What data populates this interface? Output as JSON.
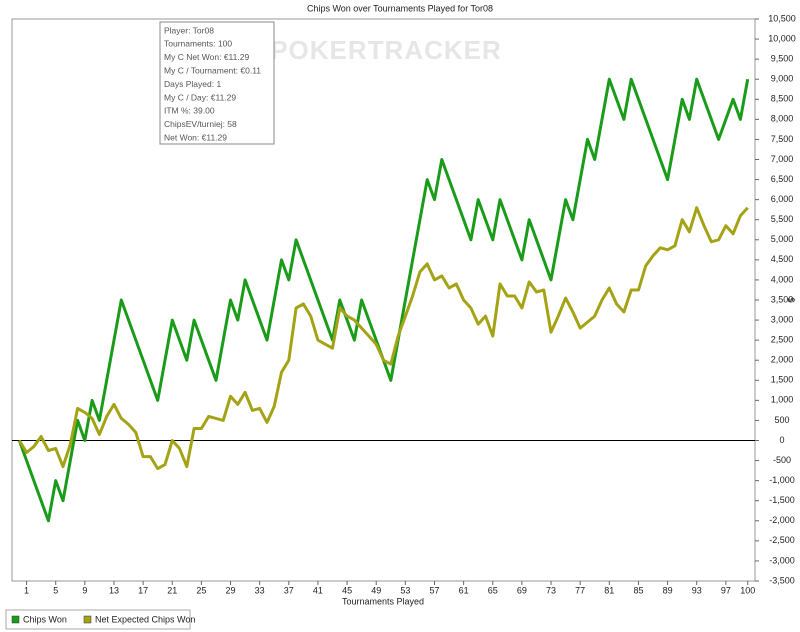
{
  "chart_data": {
    "type": "line",
    "title": "Chips Won over Tournaments Played for Tor08",
    "watermark": "POKERTRACKER",
    "x_label": "Tournaments Played",
    "y_label": "$",
    "xlim": [
      -1,
      101
    ],
    "ylim": [
      -3500,
      10500
    ],
    "xticks": [
      1,
      5,
      9,
      13,
      17,
      21,
      25,
      29,
      33,
      37,
      41,
      45,
      49,
      53,
      57,
      61,
      65,
      69,
      73,
      77,
      81,
      85,
      89,
      93,
      97,
      100
    ],
    "yticks": [
      {
        "value": -3500,
        "label": "-3,500"
      },
      {
        "value": -3000,
        "label": "-3,000"
      },
      {
        "value": -2500,
        "label": "-2,500"
      },
      {
        "value": -2000,
        "label": "-2,000"
      },
      {
        "value": -1500,
        "label": "-1,500"
      },
      {
        "value": -1000,
        "label": "-1,000"
      },
      -500,
      0,
      500,
      {
        "value": 1000,
        "label": "1,000"
      },
      {
        "value": 1500,
        "label": "1,500"
      },
      {
        "value": 2000,
        "label": "2,000"
      },
      {
        "value": 2500,
        "label": "2,500"
      },
      {
        "value": 3000,
        "label": "3,000"
      },
      {
        "value": 3500,
        "label": "3,500"
      },
      {
        "value": 4000,
        "label": "4,000"
      },
      {
        "value": 4500,
        "label": "4,500"
      },
      {
        "value": 5000,
        "label": "5,000"
      },
      {
        "value": 5500,
        "label": "5,500"
      },
      {
        "value": 6000,
        "label": "6,000"
      },
      {
        "value": 6500,
        "label": "6,500"
      },
      {
        "value": 7000,
        "label": "7,000"
      },
      {
        "value": 7500,
        "label": "7,500"
      },
      {
        "value": 8000,
        "label": "8,000"
      },
      {
        "value": 8500,
        "label": "8,500"
      },
      {
        "value": 9000,
        "label": "9,000"
      },
      {
        "value": 9500,
        "label": "9,500"
      },
      {
        "value": 10000,
        "label": "10,000"
      },
      {
        "value": 10500,
        "label": "10,500"
      }
    ],
    "legend": "bottom-left",
    "series": [
      {
        "name": "Chips Won",
        "color": "#1a9c1a",
        "x": [
          0,
          4,
          5,
          6,
          8,
          9,
          10,
          11,
          14,
          19,
          21,
          23,
          24,
          27,
          29,
          30,
          31,
          34,
          36,
          37,
          38,
          43,
          44,
          46,
          47,
          51,
          56,
          57,
          58,
          62,
          63,
          65,
          66,
          69,
          70,
          73,
          75,
          76,
          78,
          79,
          81,
          83,
          84,
          89,
          91,
          92,
          93,
          96,
          98,
          99,
          100
        ],
        "values": [
          0,
          -2000,
          -1000,
          -1500,
          500,
          0,
          1000,
          500,
          3500,
          1000,
          3000,
          2000,
          3000,
          1500,
          3500,
          3000,
          4000,
          2500,
          4500,
          4000,
          5000,
          2500,
          3500,
          2500,
          3500,
          1500,
          6500,
          6000,
          7000,
          5000,
          6000,
          5000,
          6000,
          4500,
          5500,
          4000,
          6000,
          5500,
          7500,
          7000,
          9000,
          8000,
          9000,
          6500,
          8500,
          8000,
          9000,
          7500,
          8500,
          8000,
          9000
        ]
      },
      {
        "name": "Net Expected Chips Won",
        "color": "#a3a315",
        "x": [
          0,
          1,
          2,
          3,
          4,
          5,
          6,
          7,
          8,
          9,
          10,
          11,
          12,
          13,
          14,
          15,
          16,
          17,
          18,
          19,
          20,
          21,
          22,
          23,
          24,
          25,
          26,
          27,
          28,
          29,
          30,
          31,
          32,
          33,
          34,
          35,
          36,
          37,
          38,
          39,
          40,
          41,
          42,
          43,
          44,
          45,
          46,
          47,
          48,
          49,
          50,
          51,
          52,
          53,
          54,
          55,
          56,
          57,
          58,
          59,
          60,
          61,
          62,
          63,
          64,
          65,
          66,
          67,
          68,
          69,
          70,
          71,
          72,
          73,
          74,
          75,
          76,
          77,
          78,
          79,
          80,
          81,
          82,
          83,
          84,
          85,
          86,
          87,
          88,
          89,
          90,
          91,
          92,
          93,
          94,
          95,
          96,
          97,
          98,
          99,
          100
        ],
        "values": [
          0,
          -300,
          -150,
          100,
          -250,
          -200,
          -650,
          -100,
          800,
          700,
          550,
          150,
          600,
          900,
          550,
          400,
          200,
          -400,
          -400,
          -700,
          -600,
          0,
          -200,
          -650,
          300,
          300,
          600,
          550,
          500,
          1100,
          900,
          1200,
          750,
          800,
          450,
          850,
          1700,
          2000,
          3300,
          3400,
          3100,
          2500,
          2400,
          2300,
          3300,
          3100,
          3000,
          2800,
          2600,
          2400,
          2000,
          1900,
          2600,
          3100,
          3600,
          4200,
          4400,
          4000,
          4100,
          3800,
          3900,
          3500,
          3300,
          2900,
          3100,
          2600,
          3900,
          3600,
          3600,
          3300,
          3950,
          3700,
          3750,
          2700,
          3100,
          3550,
          3200,
          2800,
          2950,
          3100,
          3500,
          3800,
          3400,
          3200,
          3750,
          3750,
          4350,
          4600,
          4800,
          4750,
          4850,
          5500,
          5200,
          5800,
          5350,
          4950,
          5000,
          5350,
          5150,
          5600,
          5800
        ]
      }
    ],
    "tooltip": [
      "Player: Tor08",
      "Tournaments: 100",
      "My C Net Won: €11.29",
      "My C / Tournament: €0.11",
      "Days Played: 1",
      "My C / Day: €11.29",
      "ITM %: 39.00",
      "ChipsEV/turniej: 58",
      "Net Won: €11.29"
    ]
  }
}
